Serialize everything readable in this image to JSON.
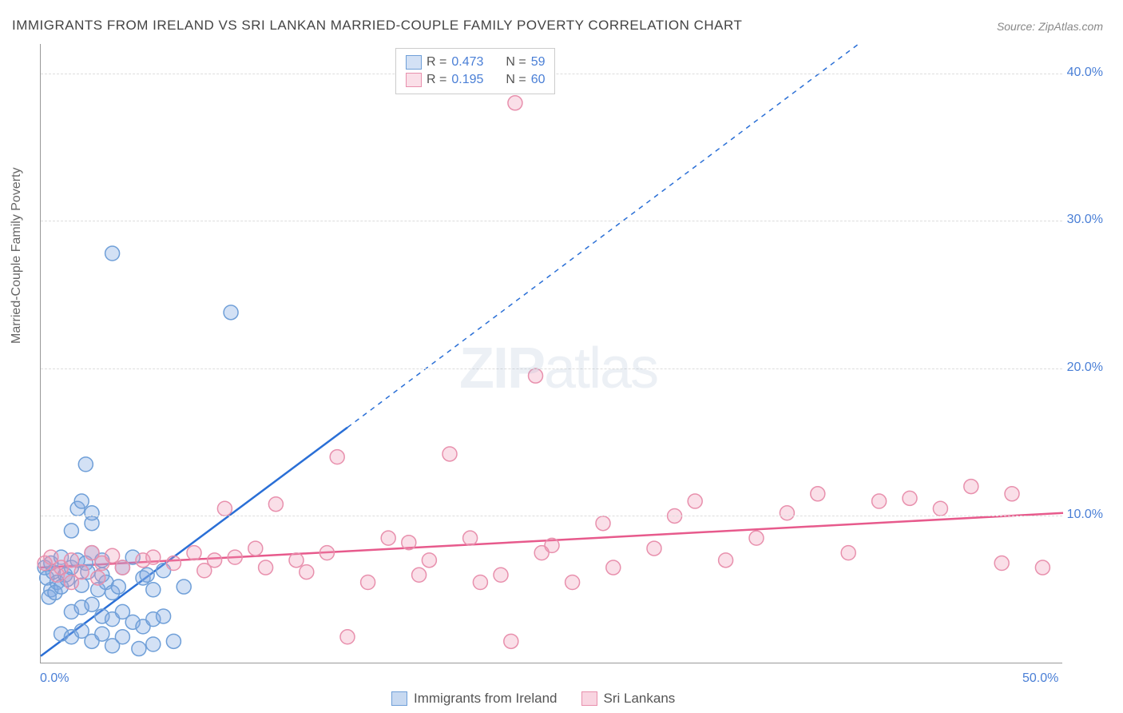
{
  "title": "IMMIGRANTS FROM IRELAND VS SRI LANKAN MARRIED-COUPLE FAMILY POVERTY CORRELATION CHART",
  "source_label": "Source:",
  "source_value": "ZipAtlas.com",
  "y_axis_label": "Married-Couple Family Poverty",
  "watermark_zip": "ZIP",
  "watermark_atlas": "atlas",
  "chart": {
    "type": "scatter",
    "xlim": [
      0,
      50
    ],
    "ylim": [
      0,
      42
    ],
    "x_ticks": [
      {
        "v": 0,
        "label": "0.0%"
      },
      {
        "v": 50,
        "label": "50.0%"
      }
    ],
    "y_ticks": [
      {
        "v": 10,
        "label": "10.0%"
      },
      {
        "v": 20,
        "label": "20.0%"
      },
      {
        "v": 30,
        "label": "30.0%"
      },
      {
        "v": 40,
        "label": "40.0%"
      }
    ],
    "grid_color": "#dddddd",
    "axis_color": "#999999",
    "background_color": "#ffffff",
    "tick_label_color": "#4a7fd6",
    "marker_radius": 9,
    "marker_stroke_width": 1.5,
    "series": [
      {
        "name": "Immigrants from Ireland",
        "fill_color": "rgba(130,170,225,0.35)",
        "stroke_color": "#6f9fd8",
        "line_color": "#2a6fd6",
        "R": "0.473",
        "N": "59",
        "regression_solid": {
          "x1": 0,
          "y1": 0.5,
          "x2": 15,
          "y2": 16
        },
        "regression_dashed": {
          "x1": 15,
          "y1": 16,
          "x2": 40,
          "y2": 42
        },
        "points": [
          [
            0.2,
            6.5
          ],
          [
            0.3,
            5.8
          ],
          [
            0.5,
            5.0
          ],
          [
            0.4,
            4.5
          ],
          [
            0.6,
            6.2
          ],
          [
            0.8,
            5.5
          ],
          [
            0.7,
            4.8
          ],
          [
            0.5,
            6.8
          ],
          [
            1.0,
            7.2
          ],
          [
            1.2,
            6.0
          ],
          [
            1.0,
            5.2
          ],
          [
            1.5,
            6.5
          ],
          [
            1.3,
            5.7
          ],
          [
            1.8,
            7.0
          ],
          [
            2.0,
            5.3
          ],
          [
            2.2,
            6.8
          ],
          [
            2.5,
            7.5
          ],
          [
            2.3,
            6.2
          ],
          [
            2.8,
            5.0
          ],
          [
            3.0,
            6.0
          ],
          [
            3.2,
            5.5
          ],
          [
            3.5,
            4.8
          ],
          [
            3.0,
            7.0
          ],
          [
            3.8,
            5.2
          ],
          [
            4.0,
            6.5
          ],
          [
            4.5,
            7.2
          ],
          [
            5.0,
            5.8
          ],
          [
            5.2,
            6.0
          ],
          [
            5.5,
            5.0
          ],
          [
            6.0,
            6.3
          ],
          [
            1.5,
            3.5
          ],
          [
            2.0,
            3.8
          ],
          [
            2.5,
            4.0
          ],
          [
            3.0,
            3.2
          ],
          [
            3.5,
            3.0
          ],
          [
            4.0,
            3.5
          ],
          [
            4.5,
            2.8
          ],
          [
            5.0,
            2.5
          ],
          [
            5.5,
            3.0
          ],
          [
            6.0,
            3.2
          ],
          [
            1.0,
            2.0
          ],
          [
            1.5,
            1.8
          ],
          [
            2.0,
            2.2
          ],
          [
            2.5,
            1.5
          ],
          [
            3.0,
            2.0
          ],
          [
            3.5,
            1.2
          ],
          [
            4.0,
            1.8
          ],
          [
            4.8,
            1.0
          ],
          [
            5.5,
            1.3
          ],
          [
            6.5,
            1.5
          ],
          [
            1.8,
            10.5
          ],
          [
            2.0,
            11.0
          ],
          [
            2.5,
            9.5
          ],
          [
            1.5,
            9.0
          ],
          [
            2.2,
            13.5
          ],
          [
            2.5,
            10.2
          ],
          [
            3.5,
            27.8
          ],
          [
            9.3,
            23.8
          ],
          [
            7.0,
            5.2
          ]
        ]
      },
      {
        "name": "Sri Lankans",
        "fill_color": "rgba(240,150,180,0.30)",
        "stroke_color": "#e890ad",
        "line_color": "#e75a8c",
        "R": "0.195",
        "N": "60",
        "regression_solid": {
          "x1": 0,
          "y1": 6.5,
          "x2": 50,
          "y2": 10.2
        },
        "regression_dashed": null,
        "points": [
          [
            0.2,
            6.8
          ],
          [
            0.5,
            7.2
          ],
          [
            0.8,
            6.0
          ],
          [
            1.0,
            6.5
          ],
          [
            1.5,
            7.0
          ],
          [
            2.0,
            6.2
          ],
          [
            2.5,
            7.5
          ],
          [
            3.0,
            6.8
          ],
          [
            3.5,
            7.3
          ],
          [
            4.0,
            6.5
          ],
          [
            5.0,
            7.0
          ],
          [
            5.5,
            7.2
          ],
          [
            6.5,
            6.8
          ],
          [
            7.5,
            7.5
          ],
          [
            8.0,
            6.3
          ],
          [
            8.5,
            7.0
          ],
          [
            9.0,
            10.5
          ],
          [
            9.5,
            7.2
          ],
          [
            10.5,
            7.8
          ],
          [
            11.0,
            6.5
          ],
          [
            11.5,
            10.8
          ],
          [
            12.5,
            7.0
          ],
          [
            13.0,
            6.2
          ],
          [
            14.0,
            7.5
          ],
          [
            14.5,
            14.0
          ],
          [
            15.0,
            1.8
          ],
          [
            16.0,
            5.5
          ],
          [
            17.0,
            8.5
          ],
          [
            18.0,
            8.2
          ],
          [
            18.5,
            6.0
          ],
          [
            19.0,
            7.0
          ],
          [
            20.0,
            14.2
          ],
          [
            21.0,
            8.5
          ],
          [
            21.5,
            5.5
          ],
          [
            22.5,
            6.0
          ],
          [
            23.0,
            1.5
          ],
          [
            23.2,
            38.0
          ],
          [
            24.2,
            19.5
          ],
          [
            24.5,
            7.5
          ],
          [
            25.0,
            8.0
          ],
          [
            26.0,
            5.5
          ],
          [
            27.5,
            9.5
          ],
          [
            28.0,
            6.5
          ],
          [
            30.0,
            7.8
          ],
          [
            31.0,
            10.0
          ],
          [
            32.0,
            11.0
          ],
          [
            33.5,
            7.0
          ],
          [
            35.0,
            8.5
          ],
          [
            36.5,
            10.2
          ],
          [
            38.0,
            11.5
          ],
          [
            39.5,
            7.5
          ],
          [
            41.0,
            11.0
          ],
          [
            42.5,
            11.2
          ],
          [
            44.0,
            10.5
          ],
          [
            45.5,
            12.0
          ],
          [
            47.0,
            6.8
          ],
          [
            47.5,
            11.5
          ],
          [
            49.0,
            6.5
          ],
          [
            1.5,
            5.5
          ],
          [
            2.8,
            5.8
          ]
        ]
      }
    ]
  },
  "legend_top": {
    "r_label": "R =",
    "n_label": "N ="
  },
  "legend_bottom": [
    {
      "label": "Immigrants from Ireland",
      "fill": "rgba(130,170,225,0.45)",
      "stroke": "#6f9fd8"
    },
    {
      "label": "Sri Lankans",
      "fill": "rgba(240,150,180,0.40)",
      "stroke": "#e890ad"
    }
  ]
}
